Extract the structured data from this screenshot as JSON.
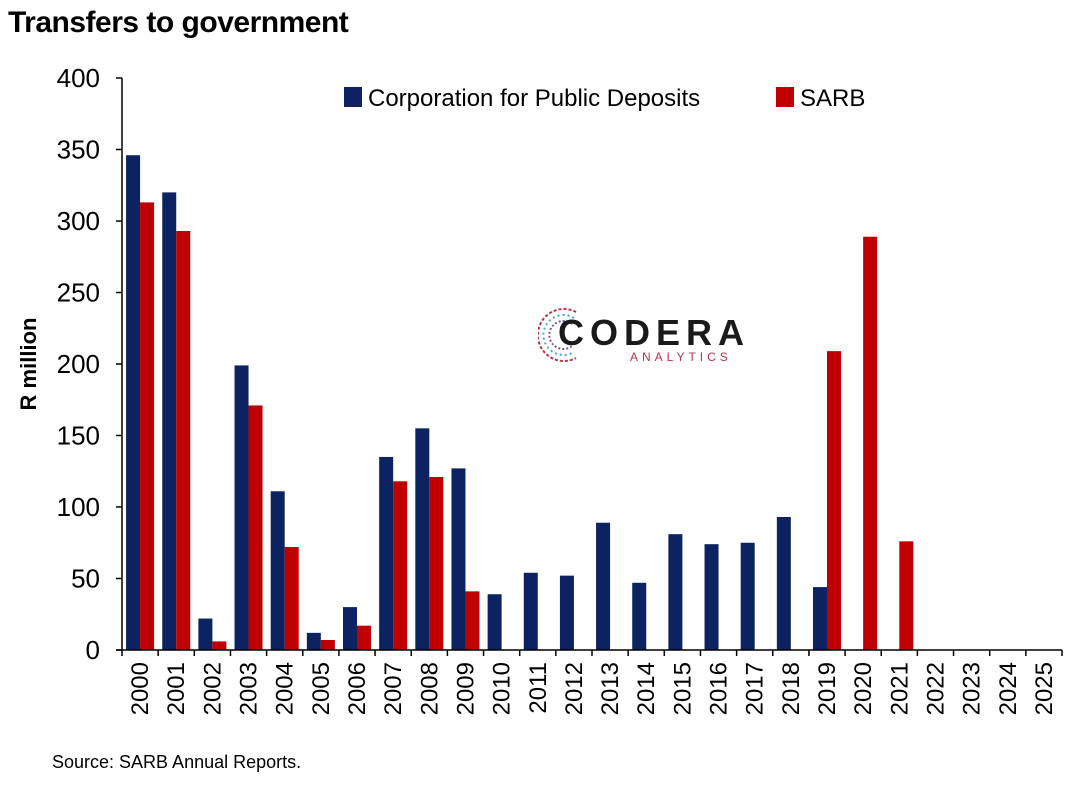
{
  "title": "Transfers to government",
  "source": "Source: SARB Annual Reports.",
  "logo": {
    "word": "CODERA",
    "sub": "ANALYTICS"
  },
  "chart_data": {
    "type": "bar",
    "ylabel": "R million",
    "ylim": [
      0,
      400
    ],
    "yticks": [
      0,
      50,
      100,
      150,
      200,
      250,
      300,
      350,
      400
    ],
    "categories": [
      "2000",
      "2001",
      "2002",
      "2003",
      "2004",
      "2005",
      "2006",
      "2007",
      "2008",
      "2009",
      "2010",
      "2011",
      "2012",
      "2013",
      "2014",
      "2015",
      "2016",
      "2017",
      "2018",
      "2019",
      "2020",
      "2021",
      "2022",
      "2023",
      "2024",
      "2025"
    ],
    "legend_position": "top",
    "series": [
      {
        "name": "Corporation for Public Deposits",
        "color": "#0d2260",
        "values": [
          346,
          320,
          22,
          199,
          111,
          12,
          30,
          135,
          155,
          127,
          39,
          54,
          52,
          89,
          47,
          81,
          74,
          75,
          93,
          44,
          null,
          null,
          null,
          null,
          null,
          null
        ]
      },
      {
        "name": "SARB",
        "color": "#c00000",
        "values": [
          313,
          293,
          6,
          171,
          72,
          7,
          17,
          118,
          121,
          41,
          null,
          null,
          null,
          null,
          null,
          null,
          null,
          null,
          null,
          209,
          289,
          76,
          null,
          null,
          null,
          null
        ]
      }
    ]
  }
}
